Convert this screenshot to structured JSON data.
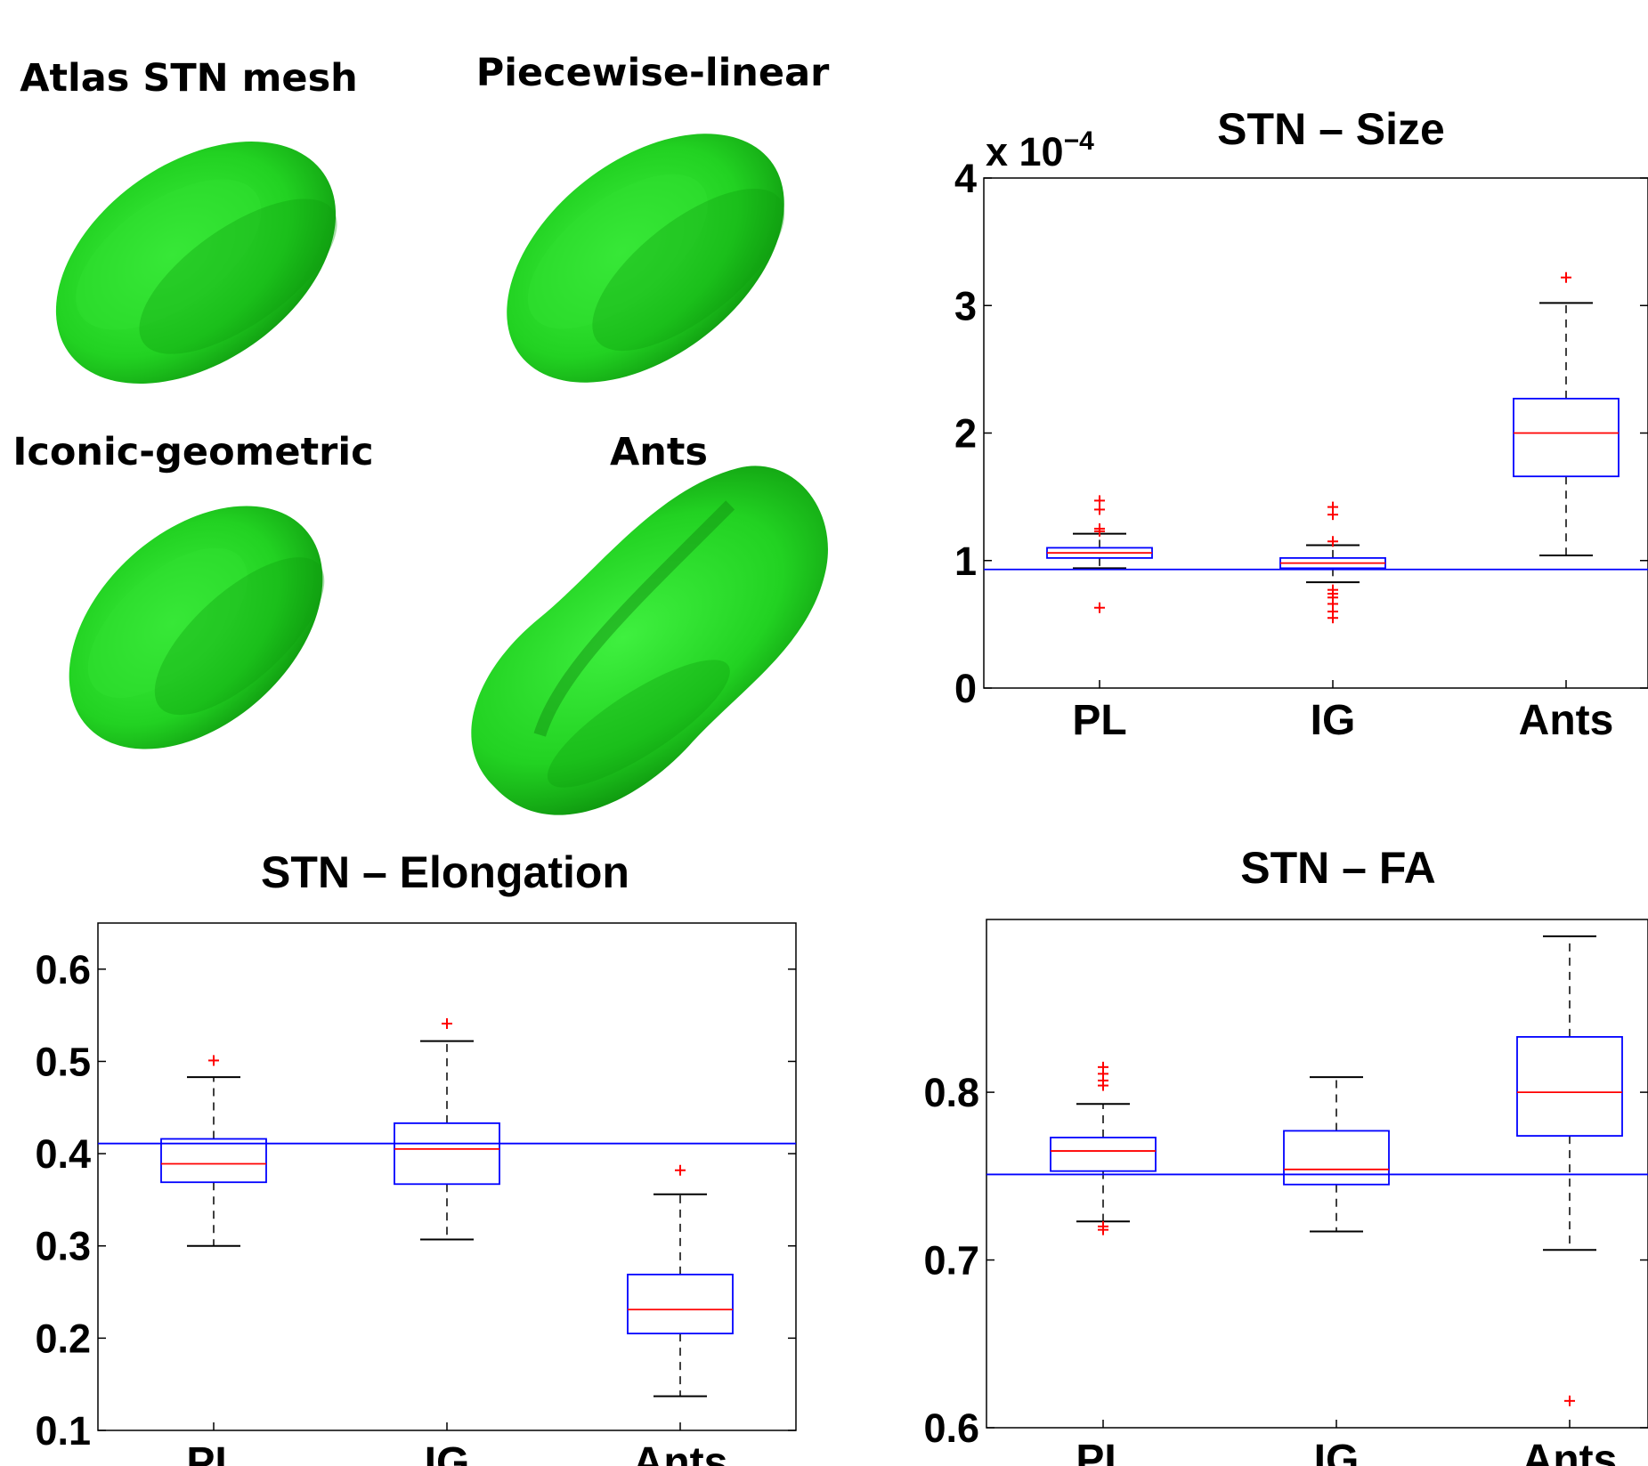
{
  "meshes": [
    {
      "label": "Atlas STN mesh",
      "color": "#1fd61f"
    },
    {
      "label": "Piecewise-linear",
      "color": "#1fd61f"
    },
    {
      "label": "Iconic-geometric",
      "color": "#1fd61f"
    },
    {
      "label": "Ants",
      "color": "#1fd61f"
    }
  ],
  "colors": {
    "box": "#0000ff",
    "median": "#ff0000",
    "whisker": "#000000",
    "outlier": "#ff0000",
    "reference": "#0000ff"
  },
  "chart_data": [
    {
      "type": "box",
      "title": "STN – Size",
      "multiplier_base": "x 10",
      "multiplier_exp": "−4",
      "categories": [
        "PL",
        "IG",
        "Ants"
      ],
      "ylim": [
        0,
        4
      ],
      "yticks": [
        0,
        1,
        2,
        3,
        4
      ],
      "ytick_labels": [
        "0",
        "1",
        "2",
        "3",
        "4"
      ],
      "reference_line": 0.93,
      "boxes": [
        {
          "q1": 1.02,
          "median": 1.06,
          "q3": 1.1,
          "whisker_low": 0.94,
          "whisker_high": 1.21,
          "outliers": [
            0.63,
            1.23,
            1.25,
            1.4,
            1.47
          ]
        },
        {
          "q1": 0.94,
          "median": 0.98,
          "q3": 1.02,
          "whisker_low": 0.83,
          "whisker_high": 1.12,
          "outliers": [
            0.55,
            0.6,
            0.66,
            0.71,
            0.74,
            0.77,
            1.15,
            1.36,
            1.42
          ]
        },
        {
          "q1": 1.66,
          "median": 2.0,
          "q3": 2.27,
          "whisker_low": 1.04,
          "whisker_high": 3.02,
          "outliers": [
            3.22
          ]
        }
      ]
    },
    {
      "type": "box",
      "title": "STN – Elongation",
      "categories": [
        "PL",
        "IG",
        "Ants"
      ],
      "ylim": [
        0.1,
        0.65
      ],
      "yticks": [
        0.1,
        0.2,
        0.3,
        0.4,
        0.5,
        0.6
      ],
      "ytick_labels": [
        "0.1",
        "0.2",
        "0.3",
        "0.4",
        "0.5",
        "0.6"
      ],
      "reference_line": 0.411,
      "boxes": [
        {
          "q1": 0.369,
          "median": 0.389,
          "q3": 0.416,
          "whisker_low": 0.3,
          "whisker_high": 0.483,
          "outliers": [
            0.501
          ]
        },
        {
          "q1": 0.367,
          "median": 0.405,
          "q3": 0.433,
          "whisker_low": 0.307,
          "whisker_high": 0.522,
          "outliers": [
            0.541
          ]
        },
        {
          "q1": 0.205,
          "median": 0.231,
          "q3": 0.269,
          "whisker_low": 0.137,
          "whisker_high": 0.356,
          "outliers": [
            0.382
          ]
        }
      ]
    },
    {
      "type": "box",
      "title": "STN – FA",
      "categories": [
        "PL",
        "IG",
        "Ants"
      ],
      "ylim": [
        0.6,
        0.903
      ],
      "yticks": [
        0.6,
        0.7,
        0.8
      ],
      "ytick_labels": [
        "0.6",
        "0.7",
        "0.8"
      ],
      "reference_line": 0.751,
      "boxes": [
        {
          "q1": 0.753,
          "median": 0.765,
          "q3": 0.773,
          "whisker_low": 0.723,
          "whisker_high": 0.793,
          "outliers": [
            0.718,
            0.72,
            0.804,
            0.807,
            0.811,
            0.815
          ]
        },
        {
          "q1": 0.745,
          "median": 0.754,
          "q3": 0.777,
          "whisker_low": 0.717,
          "whisker_high": 0.809,
          "outliers": []
        },
        {
          "q1": 0.774,
          "median": 0.8,
          "q3": 0.833,
          "whisker_low": 0.706,
          "whisker_high": 0.893,
          "outliers": [
            0.616
          ]
        }
      ]
    }
  ]
}
